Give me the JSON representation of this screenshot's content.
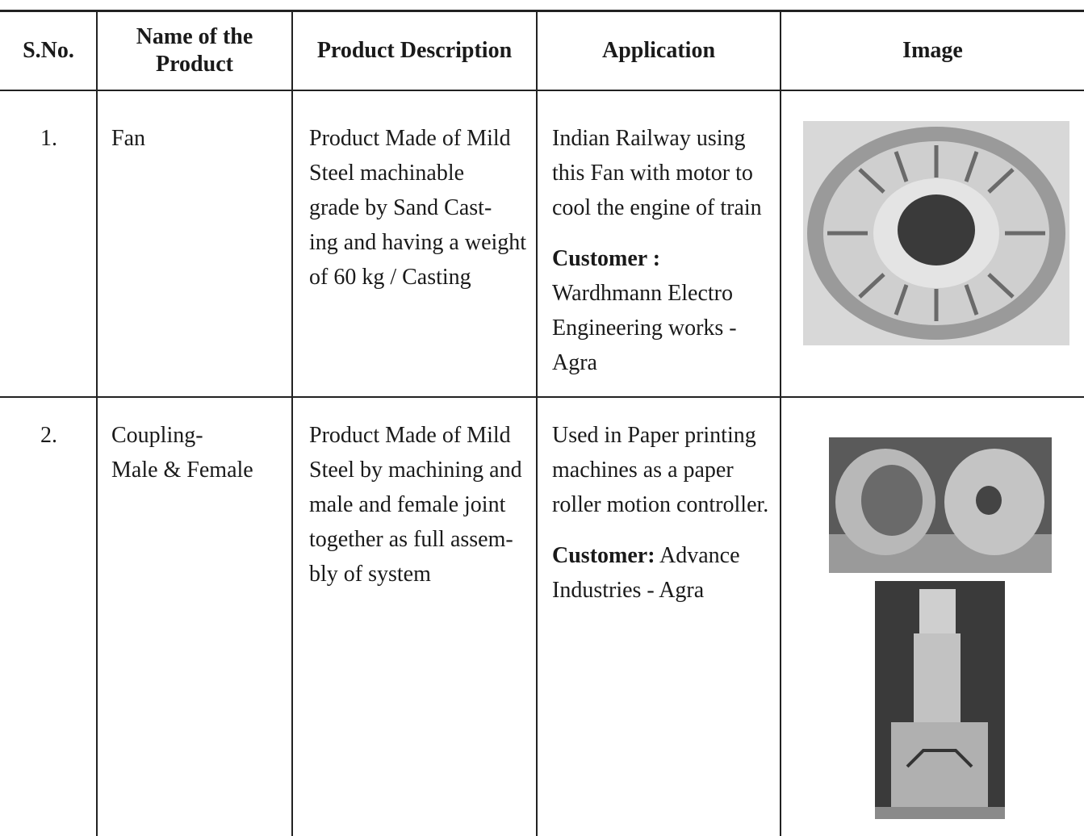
{
  "table": {
    "header": [
      "S.No.",
      [
        "Name of the",
        "Product"
      ],
      "Product Description",
      "Application",
      "Image"
    ],
    "rows": [
      {
        "sno": "1.",
        "name": [
          "Fan"
        ],
        "description": [
          "Product Made of Mild",
          "Steel machinable",
          "grade by Sand Cast-",
          "ing and having a weight",
          "of 60 kg / Casting"
        ],
        "application": [
          "Indian Railway using",
          "this Fan with motor to",
          "cool the engine of train"
        ],
        "customer_label": "Customer :",
        "customer": [
          "Wardhmann Electro",
          "Engineering works -",
          "Agra"
        ]
      },
      {
        "sno": "2.",
        "name": [
          "Coupling-",
          "Male & Female"
        ],
        "description": [
          "Product Made of Mild",
          "Steel by machining and",
          "male and female joint",
          "together as full assem-",
          "bly of system"
        ],
        "application": [
          "Used in Paper printing",
          "machines as a paper",
          "roller motion controller."
        ],
        "customer_label": "Customer:",
        "customer": [
          "Advance",
          "Industries - Agra"
        ]
      }
    ]
  }
}
